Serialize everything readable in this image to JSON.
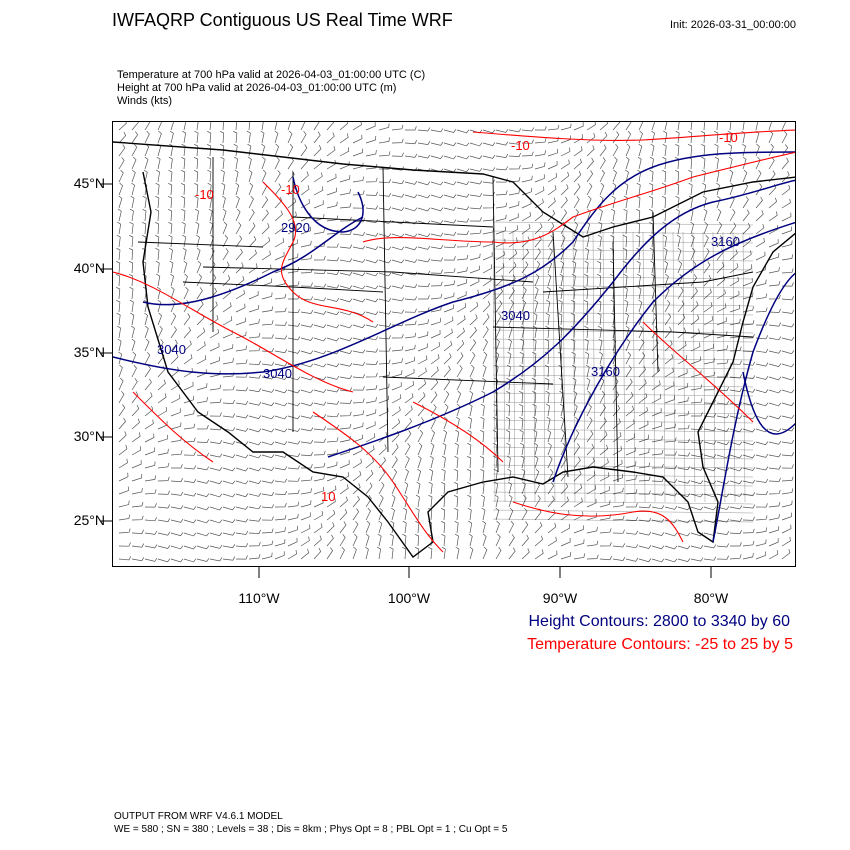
{
  "header": {
    "title": "IWFAQRP Contiguous US Real Time WRF",
    "init": "Init: 2026-03-31_00:00:00"
  },
  "variables": [
    "Temperature at 700 hPa valid at 2026-04-03_01:00:00 UTC   (C)",
    "Height at 700 hPa valid at 2026-04-03_01:00:00 UTC   (m)",
    "Winds   (kts)"
  ],
  "axes": {
    "lat_labels": [
      "45°N",
      "40°N",
      "35°N",
      "30°N",
      "25°N"
    ],
    "lon_labels": [
      "110°W",
      "100°W",
      "90°W",
      "80°W"
    ]
  },
  "contour_labels": {
    "height": [
      "2920",
      "3040",
      "3040",
      "3040",
      "3160",
      "3160"
    ],
    "temperature": [
      "-10",
      "-10",
      "-10",
      "-10",
      "10"
    ]
  },
  "legend": {
    "height": "Height Contours: 2800 to 3340 by 60",
    "temperature": "Temperature Contours: -25 to 25 by 5"
  },
  "colors": {
    "height_contour": "#000080",
    "temperature_contour": "#ff0000",
    "borders": "#000000"
  },
  "footer": {
    "model": "OUTPUT FROM WRF V4.6.1 MODEL",
    "params": "WE = 580 ; SN = 380 ; Levels = 38 ; Dis = 8km ; Phys Opt = 8 ; PBL Opt = 1 ; Cu Opt = 5"
  }
}
